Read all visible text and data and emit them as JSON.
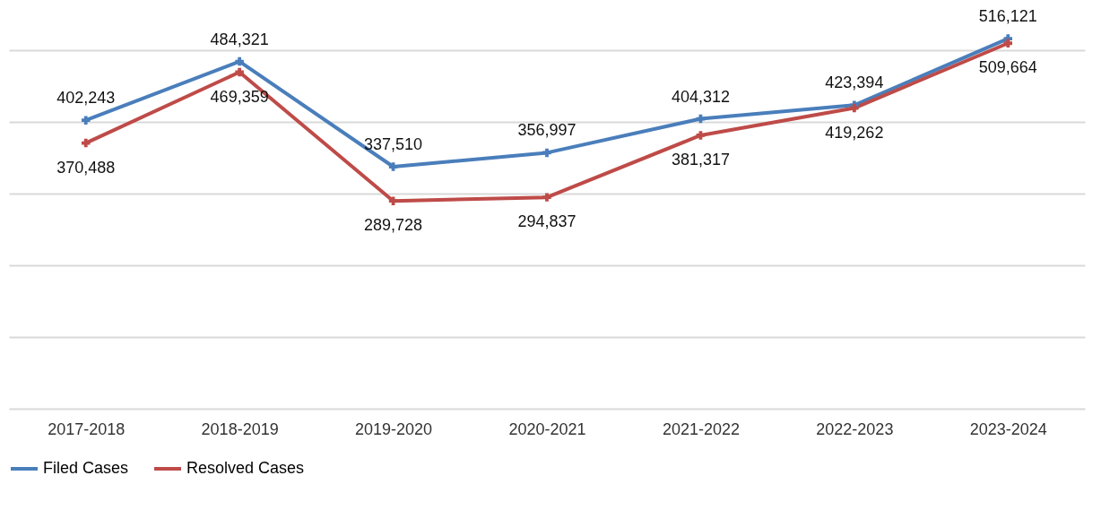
{
  "chart_data": {
    "type": "line",
    "categories": [
      "2017-2018",
      "2018-2019",
      "2019-2020",
      "2020-2021",
      "2021-2022",
      "2022-2023",
      "2023-2024"
    ],
    "series": [
      {
        "name": "Filed Cases",
        "color": "#4a7ebb",
        "values": [
          402243,
          484321,
          337510,
          356997,
          404312,
          423394,
          516121
        ],
        "value_labels": [
          "402,243",
          "484,321",
          "337,510",
          "356,997",
          "404,312",
          "423,394",
          "516,121"
        ]
      },
      {
        "name": "Resolved Cases",
        "color": "#be4b48",
        "values": [
          370488,
          469359,
          289728,
          294837,
          381317,
          419262,
          509664
        ],
        "value_labels": [
          "370,488",
          "469,359",
          "289,728",
          "294,837",
          "381,317",
          "419,262",
          "509,664"
        ]
      }
    ],
    "tick_labels": "x",
    "grid": "y",
    "legend": "bottom",
    "marker": "cross",
    "line_style": "solid"
  }
}
